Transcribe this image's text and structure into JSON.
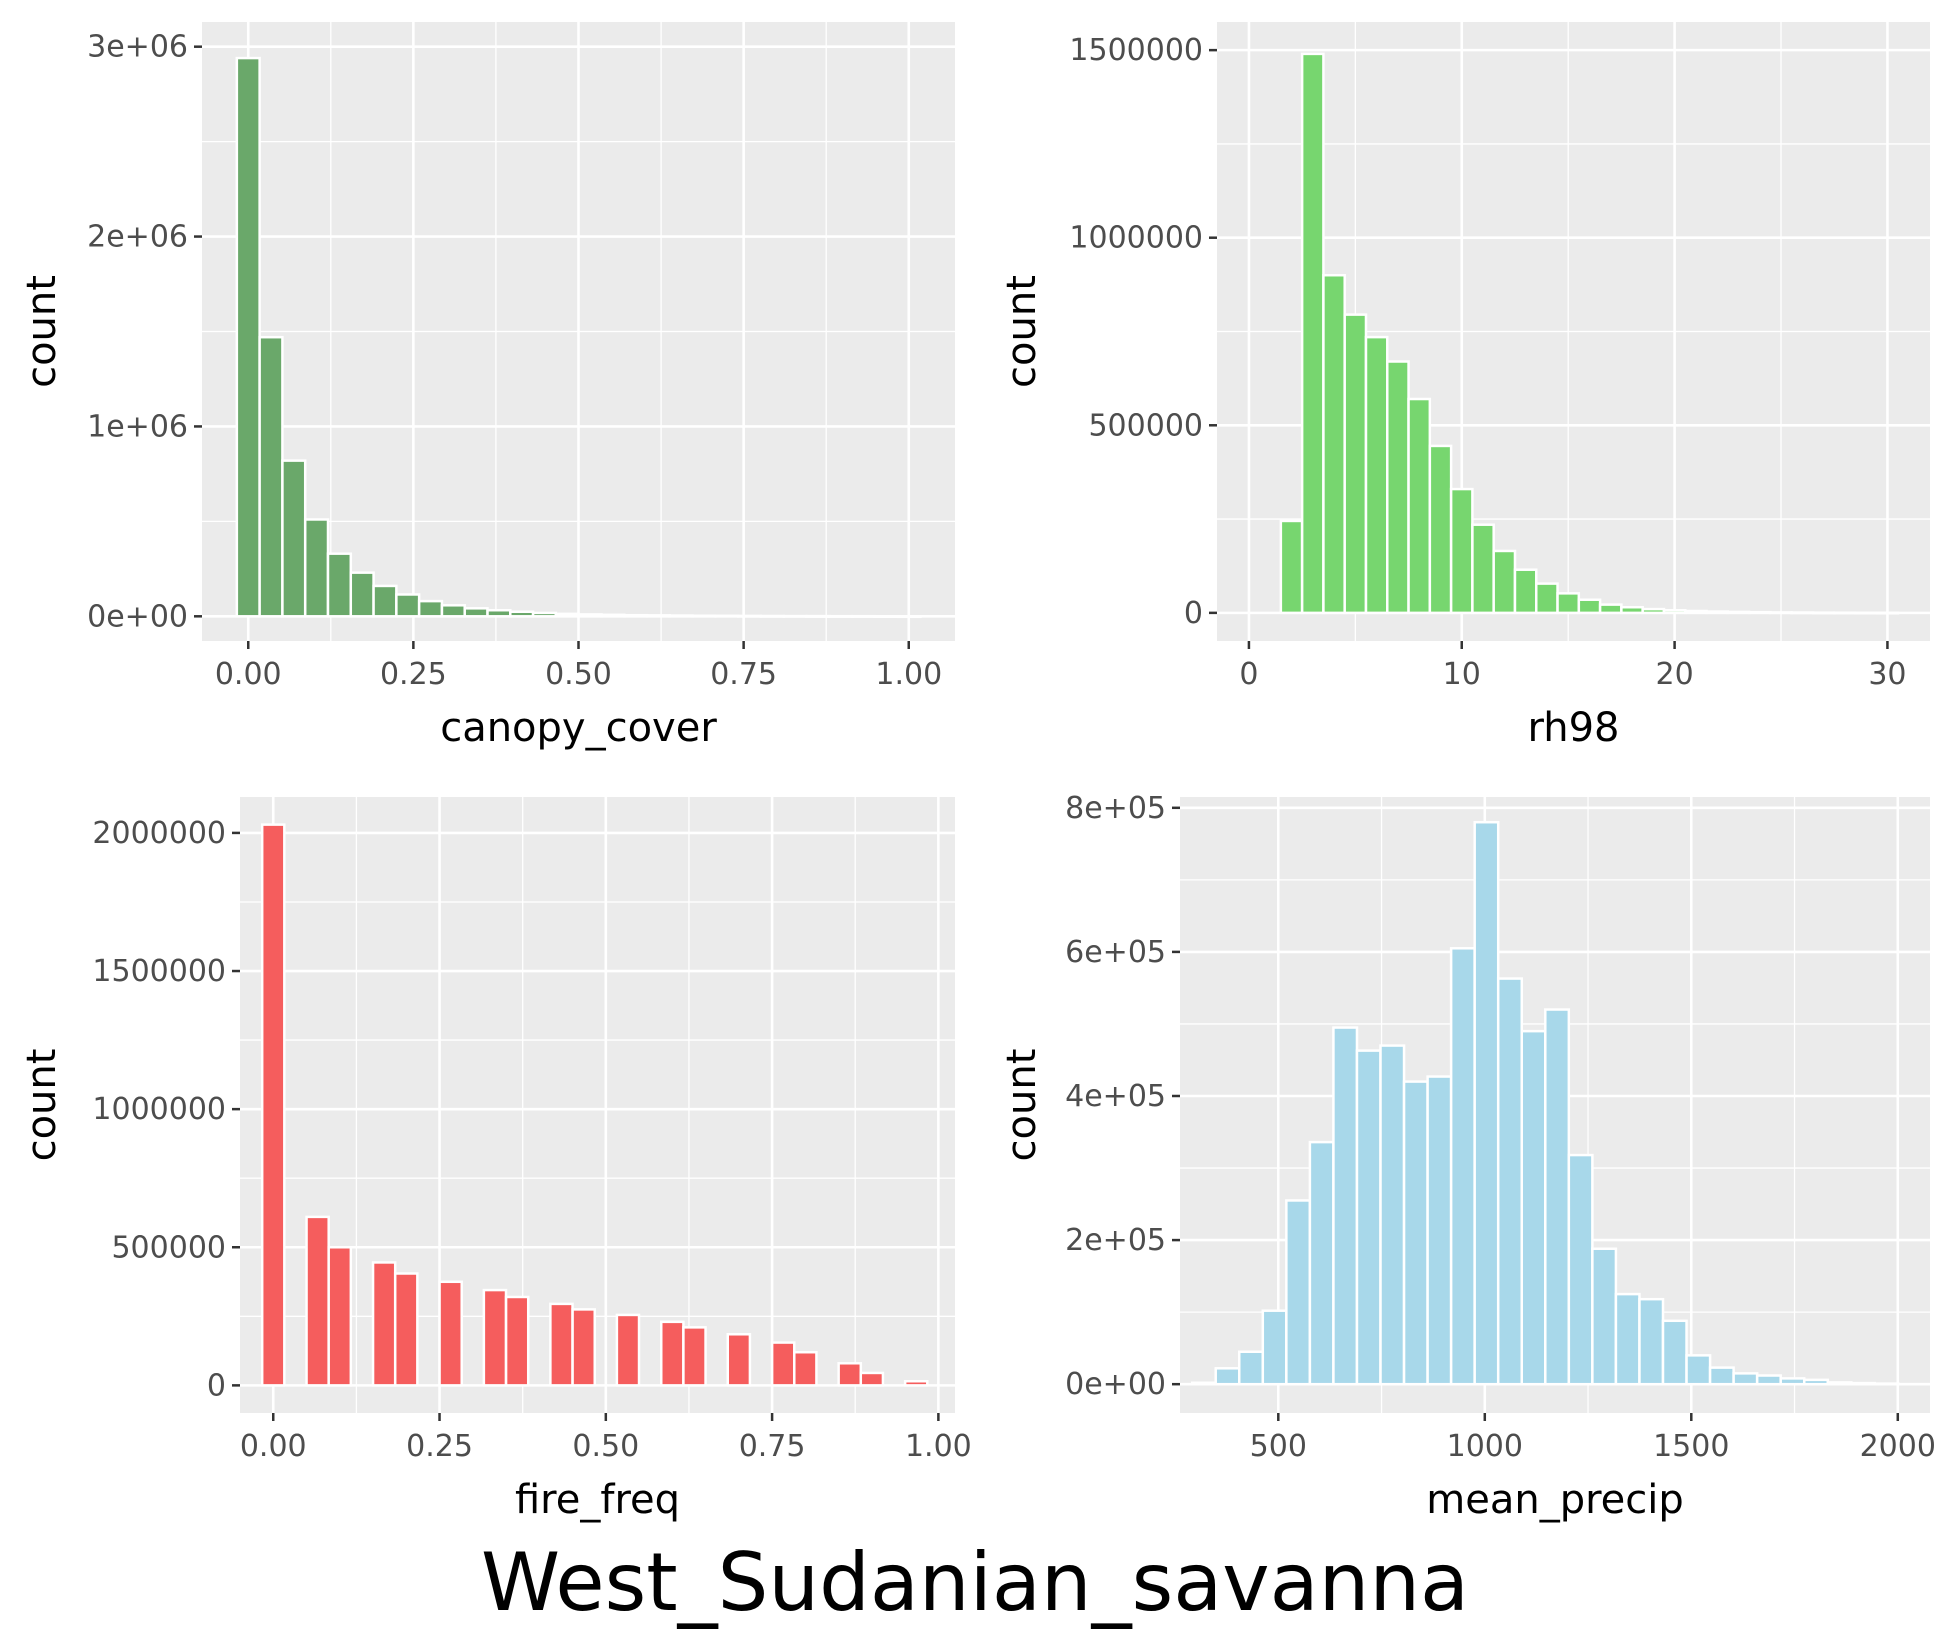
{
  "figure": {
    "title": "West_Sudanian_savanna"
  },
  "chart_data": [
    {
      "type": "bar",
      "xlabel": "canopy_cover",
      "ylabel": "count",
      "fill": "#6aa86a",
      "xlim": [
        -0.07,
        1.07
      ],
      "ylim": [
        -130000,
        3130000
      ],
      "x_ticks": [
        0,
        0.25,
        0.5,
        0.75,
        1
      ],
      "x_tick_labels": [
        "0.00",
        "0.25",
        "0.50",
        "0.75",
        "1.00"
      ],
      "y_ticks": [
        0,
        1000000,
        2000000,
        3000000
      ],
      "y_tick_labels": [
        "0e+00",
        "1e+06",
        "2e+06",
        "3e+06"
      ],
      "bin_width": 0.0345,
      "x": [
        0,
        0.0345,
        0.069,
        0.1035,
        0.138,
        0.1725,
        0.207,
        0.2415,
        0.276,
        0.3105,
        0.345,
        0.3795,
        0.414,
        0.4485,
        0.483,
        0.5175,
        0.552,
        0.5865,
        0.621,
        0.6555,
        0.69,
        0.7245,
        0.759,
        0.7935,
        0.828,
        0.8625,
        0.897,
        0.9315,
        0.966,
        1.0005
      ],
      "values": [
        2940000,
        1470000,
        820000,
        510000,
        330000,
        230000,
        160000,
        115000,
        80000,
        58000,
        42000,
        32000,
        24000,
        18000,
        13000,
        10000,
        8000,
        6000,
        5000,
        4000,
        3000,
        2500,
        2000,
        1500,
        1200,
        1000,
        800,
        600,
        400,
        200
      ]
    },
    {
      "type": "bar",
      "xlabel": "rh98",
      "ylabel": "count",
      "fill": "#77d66f",
      "xlim": [
        -1.5,
        32
      ],
      "ylim": [
        -75000,
        1575000
      ],
      "x_ticks": [
        0,
        10,
        20,
        30
      ],
      "x_tick_labels": [
        "0",
        "10",
        "20",
        "30"
      ],
      "y_ticks": [
        0,
        500000,
        1000000,
        1500000
      ],
      "y_tick_labels": [
        "0",
        "500000",
        "1000000",
        "1500000"
      ],
      "bin_width": 1.0,
      "x": [
        2,
        3,
        4,
        5,
        6,
        7,
        8,
        9,
        10,
        11,
        12,
        13,
        14,
        15,
        16,
        17,
        18,
        19,
        20,
        21,
        22,
        23,
        24,
        25,
        26,
        27,
        28,
        29,
        30
      ],
      "values": [
        245000,
        1490000,
        900000,
        795000,
        735000,
        670000,
        570000,
        445000,
        330000,
        235000,
        165000,
        115000,
        78000,
        52000,
        35000,
        22000,
        15000,
        10000,
        7000,
        5000,
        3500,
        2500,
        1800,
        1200,
        900,
        600,
        400,
        300,
        200
      ]
    },
    {
      "type": "bar",
      "xlabel": "fire_freq",
      "ylabel": "count",
      "fill": "#f55d5d",
      "xlim": [
        -0.05,
        1.025
      ],
      "ylim": [
        -100000,
        2130000
      ],
      "x_ticks": [
        0,
        0.25,
        0.5,
        0.75,
        1
      ],
      "x_tick_labels": [
        "0.00",
        "0.25",
        "0.50",
        "0.75",
        "1.00"
      ],
      "y_ticks": [
        0,
        500000,
        1000000,
        1500000,
        2000000
      ],
      "y_tick_labels": [
        "0",
        "500000",
        "1000000",
        "1500000",
        "2000000"
      ],
      "bin_width": 0.0333,
      "x": [
        0,
        0.0333,
        0.0667,
        0.1,
        0.1333,
        0.1667,
        0.2,
        0.2333,
        0.2667,
        0.3,
        0.3333,
        0.3667,
        0.4,
        0.4333,
        0.4667,
        0.5,
        0.5333,
        0.5667,
        0.6,
        0.6333,
        0.6667,
        0.7,
        0.7333,
        0.7667,
        0.8,
        0.8333,
        0.8667,
        0.9,
        0.9333,
        0.9667
      ],
      "values": [
        2030000,
        0,
        610000,
        500000,
        0,
        445000,
        405000,
        0,
        375000,
        0,
        345000,
        320000,
        0,
        295000,
        275000,
        0,
        255000,
        0,
        230000,
        210000,
        0,
        185000,
        0,
        155000,
        120000,
        0,
        80000,
        45000,
        0,
        15000
      ]
    },
    {
      "type": "bar",
      "xlabel": "mean_precip",
      "ylabel": "count",
      "fill": "#a8d8ea",
      "xlim": [
        262,
        2078
      ],
      "ylim": [
        -40000,
        815000
      ],
      "x_ticks": [
        500,
        1000,
        1500,
        2000
      ],
      "x_tick_labels": [
        "500",
        "1000",
        "1500",
        "2000"
      ],
      "y_ticks": [
        0,
        200000,
        400000,
        600000,
        800000
      ],
      "y_tick_labels": [
        "0e+00",
        "2e+05",
        "4e+05",
        "6e+05",
        "8e+05"
      ],
      "bin_width": 57,
      "x": [
        320,
        377,
        434,
        491,
        548,
        605,
        662,
        719,
        776,
        833,
        890,
        947,
        1004,
        1061,
        1118,
        1175,
        1232,
        1289,
        1346,
        1403,
        1460,
        1517,
        1574,
        1631,
        1688,
        1745,
        1802,
        1859,
        1916,
        1973
      ],
      "values": [
        2000,
        22000,
        45000,
        102000,
        255000,
        336000,
        495000,
        463000,
        470000,
        420000,
        427000,
        605000,
        780000,
        563000,
        490000,
        520000,
        318000,
        188000,
        125000,
        118000,
        88000,
        40000,
        23000,
        15000,
        12000,
        8000,
        6000,
        2500,
        1500,
        800
      ]
    }
  ]
}
